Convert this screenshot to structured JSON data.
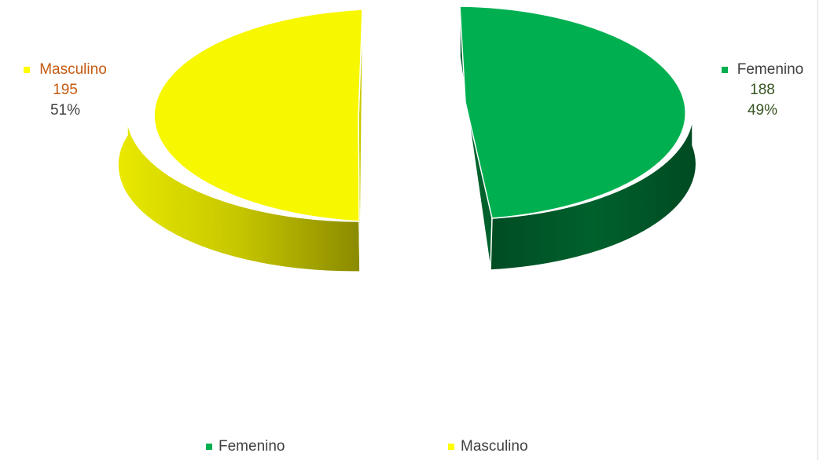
{
  "chart_data": {
    "type": "pie",
    "style": "3d-exploded",
    "title": "",
    "categories": [
      "Femenino",
      "Masculino"
    ],
    "values": [
      188,
      195
    ],
    "percentages": [
      "49%",
      "51%"
    ],
    "colors": [
      "#00b050",
      "#ffff00"
    ],
    "label_name_colors": [
      "#404040",
      "#c55a11"
    ],
    "label_value_colors": [
      "#375623",
      "#c55a11"
    ],
    "label_percent_colors": [
      "#375623",
      "#404040"
    ],
    "legend": {
      "position": "bottom",
      "entries": [
        "Femenino",
        "Masculino"
      ]
    }
  }
}
